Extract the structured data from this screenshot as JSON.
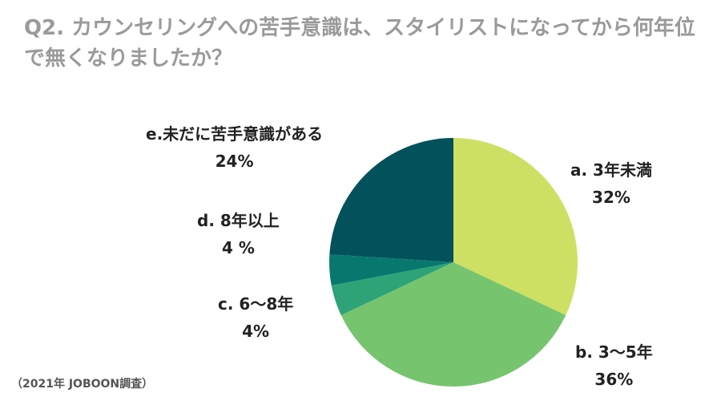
{
  "title": "Q2. カウンセリングへの苦手意識は、スタイリストになってから何年位で無くなりましたか？",
  "source": "（2021年 JOBOON調査）",
  "chart_data": {
    "type": "pie",
    "title": "Q2. カウンセリングへの苦手意識は、スタイリストになってから何年位で無くなりましたか？",
    "start_angle_deg": 0,
    "direction": "clockwise",
    "slices": [
      {
        "label": "a. 3年未満",
        "value": 32,
        "value_label": "32%",
        "color": "#cde063"
      },
      {
        "label": "b. 3〜5年",
        "value": 36,
        "value_label": "36%",
        "color": "#77c46e"
      },
      {
        "label": "c. 6〜8年",
        "value": 4,
        "value_label": "4%",
        "color": "#2ea378"
      },
      {
        "label": "d. 8年以上",
        "value": 4,
        "value_label": "4 %",
        "color": "#08786f"
      },
      {
        "label": "e.未だに苦手意識がある",
        "value": 24,
        "value_label": "24%",
        "color": "#03515b"
      }
    ]
  }
}
